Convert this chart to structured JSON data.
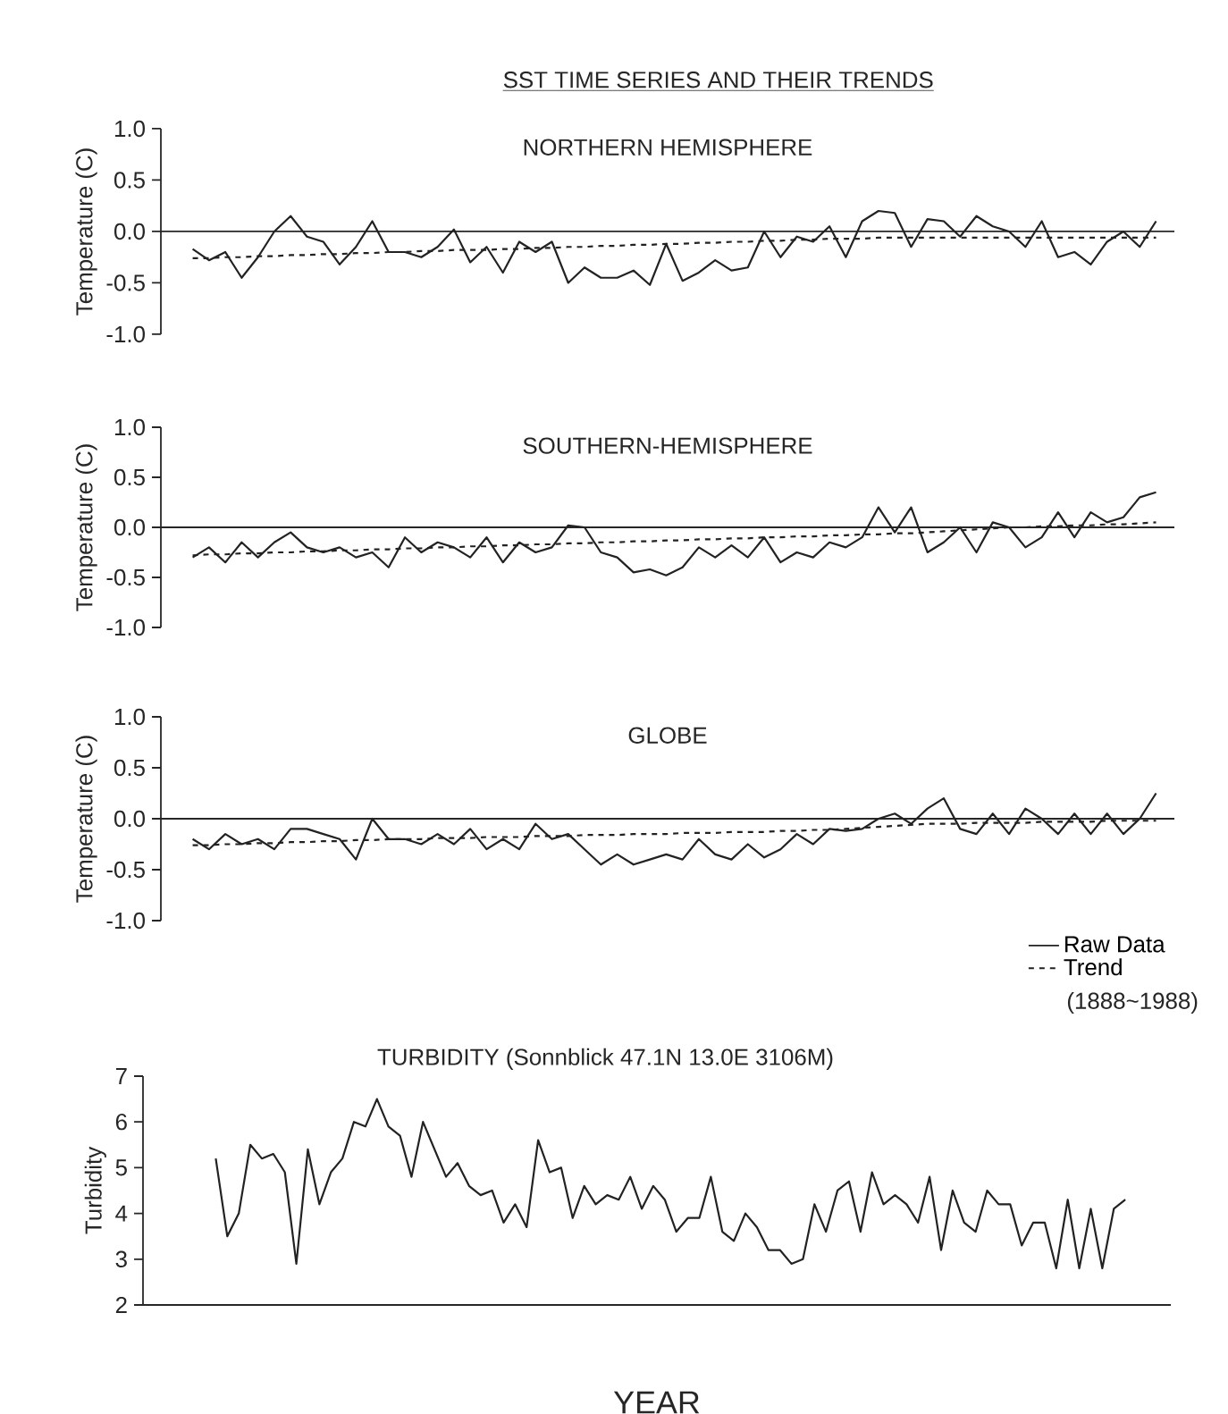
{
  "chart_data": [
    {
      "type": "line",
      "title": "SST TIME SERIES AND THEIR TRENDS",
      "subtitle": "NORTHERN HEMISPHERE",
      "ylabel": "Temperature (C)",
      "categories": [
        null,
        null,
        null,
        null,
        null,
        null,
        null,
        null,
        null,
        null,
        null,
        null,
        null,
        null,
        null,
        null,
        null,
        null,
        null,
        null,
        null,
        null,
        null,
        null,
        null,
        null,
        null,
        null,
        null,
        null,
        null,
        null,
        null,
        null,
        null,
        null,
        null,
        null,
        null,
        null,
        null,
        null,
        null,
        null,
        null,
        null,
        null,
        null,
        null,
        null,
        null,
        null,
        null,
        null,
        null,
        null,
        null,
        null,
        null,
        null
      ],
      "ylim": [
        -1,
        1
      ],
      "yticks": [
        {
          "value": -1,
          "label": "-1.0"
        },
        {
          "value": -0.5,
          "label": "-0.5"
        },
        {
          "value": 0,
          "label": "0.0"
        },
        {
          "value": 0.5,
          "label": "0.5"
        },
        {
          "value": 1,
          "label": "1.0"
        }
      ],
      "tick_labels": "y",
      "ref_lines": [
        {
          "axis": "y",
          "value": 0
        }
      ],
      "series": [
        {
          "color": "#222222",
          "line_style": "solid",
          "values": [
            -0.17,
            -0.28,
            -0.2,
            -0.45,
            -0.25,
            0.0,
            0.15,
            -0.05,
            -0.1,
            -0.32,
            -0.15,
            0.1,
            -0.2,
            -0.2,
            -0.25,
            -0.15,
            0.02,
            -0.3,
            -0.15,
            -0.4,
            -0.1,
            -0.2,
            -0.1,
            -0.5,
            -0.35,
            -0.45,
            -0.45,
            -0.38,
            -0.52,
            -0.12,
            -0.48,
            -0.4,
            -0.28,
            -0.38,
            -0.35,
            0.0,
            -0.25,
            -0.05,
            -0.1,
            0.05,
            -0.25,
            0.1,
            0.2,
            0.18,
            -0.15,
            0.12,
            0.1,
            -0.05,
            0.15,
            0.05,
            0.0,
            -0.15,
            0.1,
            -0.25,
            -0.2,
            -0.32,
            -0.1,
            0.0,
            -0.15,
            0.1
          ]
        },
        {
          "color": "#222222",
          "line_style": "dashed",
          "values": [
            -0.26,
            -0.26,
            -0.25,
            -0.25,
            -0.24,
            -0.24,
            -0.23,
            -0.23,
            -0.22,
            -0.22,
            -0.21,
            -0.21,
            -0.2,
            -0.2,
            -0.19,
            -0.19,
            -0.18,
            -0.18,
            -0.18,
            -0.17,
            -0.17,
            -0.16,
            -0.16,
            -0.15,
            -0.15,
            -0.14,
            -0.14,
            -0.13,
            -0.13,
            -0.12,
            -0.12,
            -0.11,
            -0.11,
            -0.1,
            -0.1,
            -0.09,
            -0.09,
            -0.08,
            -0.08,
            -0.07,
            -0.07,
            -0.07,
            -0.06,
            -0.06,
            -0.06,
            -0.06,
            -0.06,
            -0.06,
            -0.06,
            -0.06,
            -0.06,
            -0.06,
            -0.06,
            -0.06,
            -0.06,
            -0.06,
            -0.06,
            -0.06,
            -0.06,
            -0.06
          ]
        }
      ]
    },
    {
      "type": "line",
      "title": "SOUTHERN-HEMISPHERE",
      "ylabel": "Temperature (C)",
      "categories": [
        null,
        null,
        null,
        null,
        null,
        null,
        null,
        null,
        null,
        null,
        null,
        null,
        null,
        null,
        null,
        null,
        null,
        null,
        null,
        null,
        null,
        null,
        null,
        null,
        null,
        null,
        null,
        null,
        null,
        null,
        null,
        null,
        null,
        null,
        null,
        null,
        null,
        null,
        null,
        null,
        null,
        null,
        null,
        null,
        null,
        null,
        null,
        null,
        null,
        null,
        null,
        null,
        null,
        null,
        null,
        null,
        null,
        null,
        null,
        null
      ],
      "ylim": [
        -1,
        1
      ],
      "yticks": [
        {
          "value": -1,
          "label": "-1.0"
        },
        {
          "value": -0.5,
          "label": "-0.5"
        },
        {
          "value": 0,
          "label": "0.0"
        },
        {
          "value": 0.5,
          "label": "0.5"
        },
        {
          "value": 1,
          "label": "1.0"
        }
      ],
      "tick_labels": "y",
      "ref_lines": [
        {
          "axis": "y",
          "value": 0
        }
      ],
      "series": [
        {
          "color": "#222222",
          "line_style": "solid",
          "values": [
            -0.3,
            -0.2,
            -0.35,
            -0.15,
            -0.3,
            -0.15,
            -0.05,
            -0.2,
            -0.25,
            -0.2,
            -0.3,
            -0.25,
            -0.4,
            -0.1,
            -0.25,
            -0.15,
            -0.2,
            -0.3,
            -0.1,
            -0.35,
            -0.15,
            -0.25,
            -0.2,
            0.02,
            0.0,
            -0.25,
            -0.3,
            -0.45,
            -0.42,
            -0.48,
            -0.4,
            -0.2,
            -0.3,
            -0.18,
            -0.3,
            -0.1,
            -0.35,
            -0.25,
            -0.3,
            -0.15,
            -0.2,
            -0.1,
            0.2,
            -0.05,
            0.2,
            -0.25,
            -0.15,
            0.0,
            -0.25,
            0.05,
            0.0,
            -0.2,
            -0.1,
            0.15,
            -0.1,
            0.15,
            0.05,
            0.1,
            0.3,
            0.35
          ]
        },
        {
          "color": "#222222",
          "line_style": "dashed",
          "values": [
            -0.28,
            -0.27,
            -0.27,
            -0.26,
            -0.26,
            -0.25,
            -0.25,
            -0.24,
            -0.24,
            -0.23,
            -0.23,
            -0.22,
            -0.22,
            -0.21,
            -0.21,
            -0.2,
            -0.2,
            -0.19,
            -0.19,
            -0.18,
            -0.18,
            -0.17,
            -0.17,
            -0.16,
            -0.16,
            -0.15,
            -0.15,
            -0.14,
            -0.14,
            -0.13,
            -0.13,
            -0.12,
            -0.12,
            -0.11,
            -0.11,
            -0.1,
            -0.1,
            -0.09,
            -0.09,
            -0.08,
            -0.08,
            -0.07,
            -0.07,
            -0.06,
            -0.06,
            -0.05,
            -0.04,
            -0.03,
            -0.02,
            -0.01,
            0.0,
            0.0,
            0.01,
            0.01,
            0.02,
            0.02,
            0.03,
            0.03,
            0.04,
            0.05
          ]
        }
      ]
    },
    {
      "type": "line",
      "title": "GLOBE",
      "ylabel": "Temperature (C)",
      "categories": [
        null,
        null,
        null,
        null,
        null,
        null,
        null,
        null,
        null,
        null,
        null,
        null,
        null,
        null,
        null,
        null,
        null,
        null,
        null,
        null,
        null,
        null,
        null,
        null,
        null,
        null,
        null,
        null,
        null,
        null,
        null,
        null,
        null,
        null,
        null,
        null,
        null,
        null,
        null,
        null,
        null,
        null,
        null,
        null,
        null,
        null,
        null,
        null,
        null,
        null,
        null,
        null,
        null,
        null,
        null,
        null,
        null,
        null,
        null,
        null
      ],
      "ylim": [
        -1,
        1
      ],
      "yticks": [
        {
          "value": -1,
          "label": "-1.0"
        },
        {
          "value": -0.5,
          "label": "-0.5"
        },
        {
          "value": 0,
          "label": "0.0"
        },
        {
          "value": 0.5,
          "label": "0.5"
        },
        {
          "value": 1,
          "label": "1.0"
        }
      ],
      "tick_labels": "y",
      "ref_lines": [
        {
          "axis": "y",
          "value": 0
        }
      ],
      "legend": "bottom right",
      "annotations": [
        "(1888~1988)"
      ],
      "series": [
        {
          "name": "Raw Data",
          "color": "#222222",
          "line_style": "solid",
          "values": [
            -0.2,
            -0.3,
            -0.15,
            -0.25,
            -0.2,
            -0.3,
            -0.1,
            -0.1,
            -0.15,
            -0.2,
            -0.4,
            0.0,
            -0.2,
            -0.2,
            -0.25,
            -0.15,
            -0.25,
            -0.1,
            -0.3,
            -0.2,
            -0.3,
            -0.05,
            -0.2,
            -0.15,
            -0.3,
            -0.45,
            -0.35,
            -0.45,
            -0.4,
            -0.35,
            -0.4,
            -0.2,
            -0.35,
            -0.4,
            -0.25,
            -0.38,
            -0.3,
            -0.15,
            -0.25,
            -0.1,
            -0.12,
            -0.1,
            0.0,
            0.05,
            -0.05,
            0.1,
            0.2,
            -0.1,
            -0.15,
            0.05,
            -0.15,
            0.1,
            0.0,
            -0.15,
            0.05,
            -0.15,
            0.05,
            -0.15,
            0.0,
            0.25
          ]
        },
        {
          "name": "Trend",
          "color": "#222222",
          "line_style": "dashed",
          "values": [
            -0.26,
            -0.26,
            -0.25,
            -0.25,
            -0.24,
            -0.24,
            -0.23,
            -0.23,
            -0.22,
            -0.22,
            -0.21,
            -0.21,
            -0.2,
            -0.2,
            -0.2,
            -0.19,
            -0.19,
            -0.19,
            -0.18,
            -0.18,
            -0.18,
            -0.17,
            -0.17,
            -0.17,
            -0.16,
            -0.16,
            -0.16,
            -0.15,
            -0.15,
            -0.15,
            -0.14,
            -0.14,
            -0.14,
            -0.13,
            -0.13,
            -0.13,
            -0.12,
            -0.12,
            -0.11,
            -0.11,
            -0.1,
            -0.09,
            -0.08,
            -0.07,
            -0.06,
            -0.05,
            -0.05,
            -0.05,
            -0.04,
            -0.04,
            -0.04,
            -0.04,
            -0.03,
            -0.03,
            -0.03,
            -0.03,
            -0.02,
            -0.02,
            -0.02,
            -0.02
          ]
        }
      ]
    },
    {
      "type": "line",
      "title": "TURBIDITY (Sonnblick 47.1N 13.0E 3106M)",
      "xlabel": "YEAR",
      "ylabel": "Turbidity",
      "categories": [
        null,
        null,
        null,
        null,
        null,
        null,
        null,
        null,
        null,
        null,
        null,
        null,
        null,
        null,
        null,
        null,
        null,
        null,
        null,
        null,
        null,
        null,
        null,
        null,
        null,
        null,
        null,
        null,
        null,
        null,
        null,
        null,
        null,
        null,
        null,
        null,
        null,
        null,
        null,
        null,
        null,
        null,
        null,
        null,
        null,
        null,
        null,
        null,
        null,
        null,
        null,
        null,
        null,
        null,
        null,
        null,
        null,
        null,
        null,
        null,
        null,
        null,
        null,
        null,
        null,
        null,
        null,
        null,
        null,
        null,
        null,
        null,
        null,
        null,
        null,
        null,
        null,
        null,
        null,
        null
      ],
      "ylim": [
        2,
        7
      ],
      "yticks": [
        2,
        3,
        4,
        5,
        6,
        7
      ],
      "tick_labels": "y",
      "series": [
        {
          "color": "#222222",
          "line_style": "solid",
          "values": [
            5.2,
            3.5,
            4.0,
            5.5,
            5.2,
            5.3,
            4.9,
            2.9,
            5.4,
            4.2,
            4.9,
            5.2,
            6.0,
            5.9,
            6.5,
            5.9,
            5.7,
            4.8,
            6.0,
            5.4,
            4.8,
            5.1,
            4.6,
            4.4,
            4.5,
            3.8,
            4.2,
            3.7,
            5.6,
            4.9,
            5.0,
            3.9,
            4.6,
            4.2,
            4.4,
            4.3,
            4.8,
            4.1,
            4.6,
            4.3,
            3.6,
            3.9,
            3.9,
            4.8,
            3.6,
            3.4,
            4.0,
            3.7,
            3.2,
            3.2,
            2.9,
            3.0,
            4.2,
            3.6,
            4.5,
            4.7,
            3.6,
            4.9,
            4.2,
            4.4,
            4.2,
            3.8,
            4.8,
            3.2,
            4.5,
            3.8,
            3.6,
            4.5,
            4.2,
            4.2,
            3.3,
            3.8,
            3.8,
            2.8,
            4.3,
            2.8,
            4.1,
            2.8,
            4.1,
            4.3
          ]
        }
      ]
    }
  ]
}
